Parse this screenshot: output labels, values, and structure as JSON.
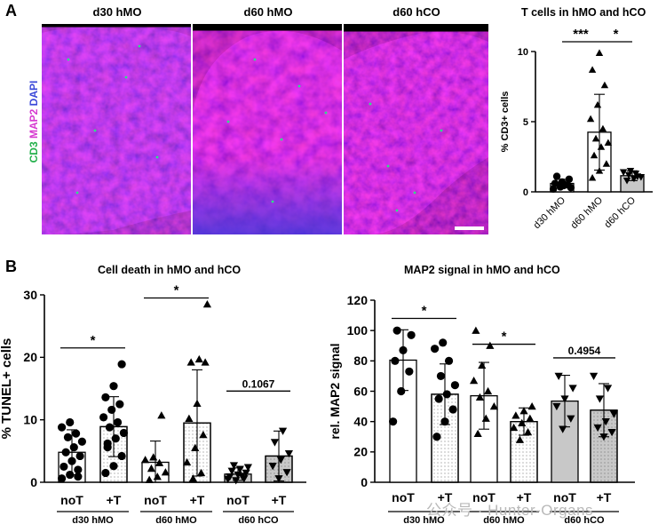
{
  "panel_a": {
    "letter": "A",
    "image_titles": [
      "d30 hMO",
      "d60 hMO",
      "d60 hCO"
    ],
    "stain_label": {
      "cd3": "CD3",
      "map2": "MAP2",
      "dapi": "DAPI"
    },
    "colors": {
      "cd3": "#22c55e",
      "map2": "#e040d0",
      "dapi": "#3a4ad8"
    }
  },
  "panel_b": {
    "letter": "B"
  },
  "watermark": "公众号 · Hunter-Organs",
  "chart_data": [
    {
      "id": "tcells",
      "type": "bar",
      "title": "T cells in hMO and hCO",
      "ylabel": "% CD3+ cells",
      "ylim": [
        0,
        10
      ],
      "yticks": [
        0,
        5,
        10
      ],
      "categories": [
        "d30 hMO",
        "d60 hMO",
        "d60 hCO"
      ],
      "bars": [
        {
          "name": "d30 hMO",
          "mean": 0.6,
          "sd": 0.3,
          "fill": "#ffffff",
          "marker": "circle",
          "points": [
            0.2,
            0.35,
            0.5,
            0.6,
            0.7,
            0.9,
            1.1,
            0.45,
            0.3
          ]
        },
        {
          "name": "d60 hMO",
          "mean": 4.25,
          "sd": 2.7,
          "fill": "#ffffff",
          "marker": "triangle",
          "points": [
            1.0,
            1.5,
            2.0,
            2.6,
            3.2,
            3.5,
            3.8,
            4.5,
            5.2,
            6.2,
            7.6,
            8.7,
            9.9
          ]
        },
        {
          "name": "d60 hCO",
          "mean": 1.15,
          "sd": 0.35,
          "fill": "#c8c8c8",
          "marker": "triangle-down",
          "points": [
            0.8,
            0.95,
            1.05,
            1.2,
            1.3,
            1.4,
            1.5,
            1.1
          ]
        }
      ],
      "significance": [
        {
          "from": 0,
          "to": 1,
          "label": "***"
        },
        {
          "from": 1,
          "to": 2,
          "label": "*"
        }
      ]
    },
    {
      "id": "celldeath",
      "type": "bar",
      "title": "Cell death in hMO and hCO",
      "ylabel": "% TUNEL+ cells",
      "ylim": [
        0,
        30
      ],
      "yticks": [
        0,
        10,
        20,
        30
      ],
      "categories": [
        "noT",
        "+T",
        "noT",
        "+T",
        "noT",
        "+T"
      ],
      "groups": [
        "d30 hMO",
        "d60 hMO",
        "d60 hCO"
      ],
      "bars": [
        {
          "name": "noT",
          "group": 0,
          "mean": 4.8,
          "sd": 3.6,
          "fill": "#ffffff",
          "pattern": false,
          "marker": "circle",
          "points": [
            0.6,
            1.2,
            2.0,
            2.5,
            3.4,
            4.2,
            4.8,
            5.6,
            6.5,
            7.2,
            7.8,
            8.8,
            9.6,
            0.9
          ]
        },
        {
          "name": "+T",
          "group": 0,
          "mean": 8.9,
          "sd": 4.8,
          "fill": "#ffffff",
          "pattern": true,
          "marker": "circle",
          "points": [
            1.5,
            2.6,
            4.2,
            5.6,
            7.0,
            7.9,
            8.8,
            9.6,
            10.4,
            11.6,
            12.5,
            13.6,
            15.4,
            18.9,
            6.2
          ]
        },
        {
          "name": "noT",
          "group": 1,
          "mean": 3.2,
          "sd": 3.4,
          "fill": "#ffffff",
          "pattern": false,
          "marker": "triangle",
          "points": [
            0.4,
            0.9,
            1.6,
            2.2,
            3.1,
            3.6,
            4.0,
            10.7
          ]
        },
        {
          "name": "+T",
          "group": 1,
          "mean": 9.5,
          "sd": 8.5,
          "fill": "#ffffff",
          "pattern": true,
          "marker": "triangle",
          "points": [
            0.6,
            1.5,
            3.2,
            5.5,
            7.6,
            10.2,
            12.6,
            19.2,
            19.2,
            19.7,
            28.5
          ]
        },
        {
          "name": "noT",
          "group": 2,
          "mean": 1.3,
          "sd": 1.0,
          "fill": "#c8c8c8",
          "pattern": false,
          "marker": "triangle-down",
          "points": [
            0.3,
            0.6,
            0.9,
            1.2,
            1.5,
            1.8,
            2.1,
            2.4,
            2.7,
            1.0,
            0.5
          ]
        },
        {
          "name": "+T",
          "group": 2,
          "mean": 4.2,
          "sd": 4.0,
          "fill": "#c8c8c8",
          "pattern": true,
          "marker": "triangle-down",
          "points": [
            0.6,
            1.6,
            2.6,
            3.6,
            4.6,
            6.4,
            8.2
          ]
        }
      ],
      "significance": [
        {
          "from": 0,
          "to": 1,
          "label": "*",
          "y": 21.5
        },
        {
          "from": 2,
          "to": 3,
          "label": "*",
          "y": 29.5
        },
        {
          "from": 4,
          "to": 5,
          "label": "0.1067",
          "y": 14.6
        }
      ]
    },
    {
      "id": "map2",
      "type": "bar",
      "title": "MAP2 signal in hMO and hCO",
      "ylabel": "rel. MAP2 signal",
      "ylim": [
        0,
        120
      ],
      "yticks": [
        0,
        20,
        40,
        60,
        80,
        100,
        120
      ],
      "categories": [
        "noT",
        "+T",
        "noT",
        "+T",
        "noT",
        "+T"
      ],
      "groups": [
        "d30 hMO",
        "d60 hMO",
        "d60 hCO"
      ],
      "bars": [
        {
          "name": "noT",
          "group": 0,
          "mean": 80.5,
          "sd": 20.0,
          "fill": "#ffffff",
          "pattern": false,
          "marker": "circle",
          "points": [
            40,
            60,
            73,
            80,
            87,
            97,
            100
          ]
        },
        {
          "name": "+T",
          "group": 0,
          "mean": 58.0,
          "sd": 20.0,
          "fill": "#ffffff",
          "pattern": true,
          "marker": "circle",
          "points": [
            30,
            40,
            48,
            55,
            58,
            64,
            70,
            80,
            88,
            92
          ]
        },
        {
          "name": "noT",
          "group": 1,
          "mean": 57.0,
          "sd": 22.0,
          "fill": "#ffffff",
          "pattern": false,
          "marker": "triangle",
          "points": [
            32,
            42,
            50,
            56,
            60,
            67,
            77,
            90,
            100
          ]
        },
        {
          "name": "+T",
          "group": 1,
          "mean": 40.0,
          "sd": 9.0,
          "fill": "#ffffff",
          "pattern": true,
          "marker": "triangle",
          "points": [
            28,
            33,
            36,
            39,
            42,
            44,
            47,
            50
          ]
        },
        {
          "name": "noT",
          "group": 2,
          "mean": 53.5,
          "sd": 17.0,
          "fill": "#c8c8c8",
          "pattern": false,
          "marker": "triangle-down",
          "points": [
            35,
            42,
            50,
            55,
            62,
            70
          ]
        },
        {
          "name": "+T",
          "group": 2,
          "mean": 47.5,
          "sd": 17.5,
          "fill": "#c8c8c8",
          "pattern": true,
          "marker": "triangle-down",
          "points": [
            30,
            33,
            36,
            40,
            45,
            55,
            62,
            70
          ]
        }
      ],
      "significance": [
        {
          "from": 0,
          "to": 1,
          "label": "*",
          "y": 108
        },
        {
          "from": 2,
          "to": 3,
          "label": "*",
          "y": 91
        },
        {
          "from": 4,
          "to": 5,
          "label": "0.4954",
          "y": 82
        }
      ]
    }
  ]
}
